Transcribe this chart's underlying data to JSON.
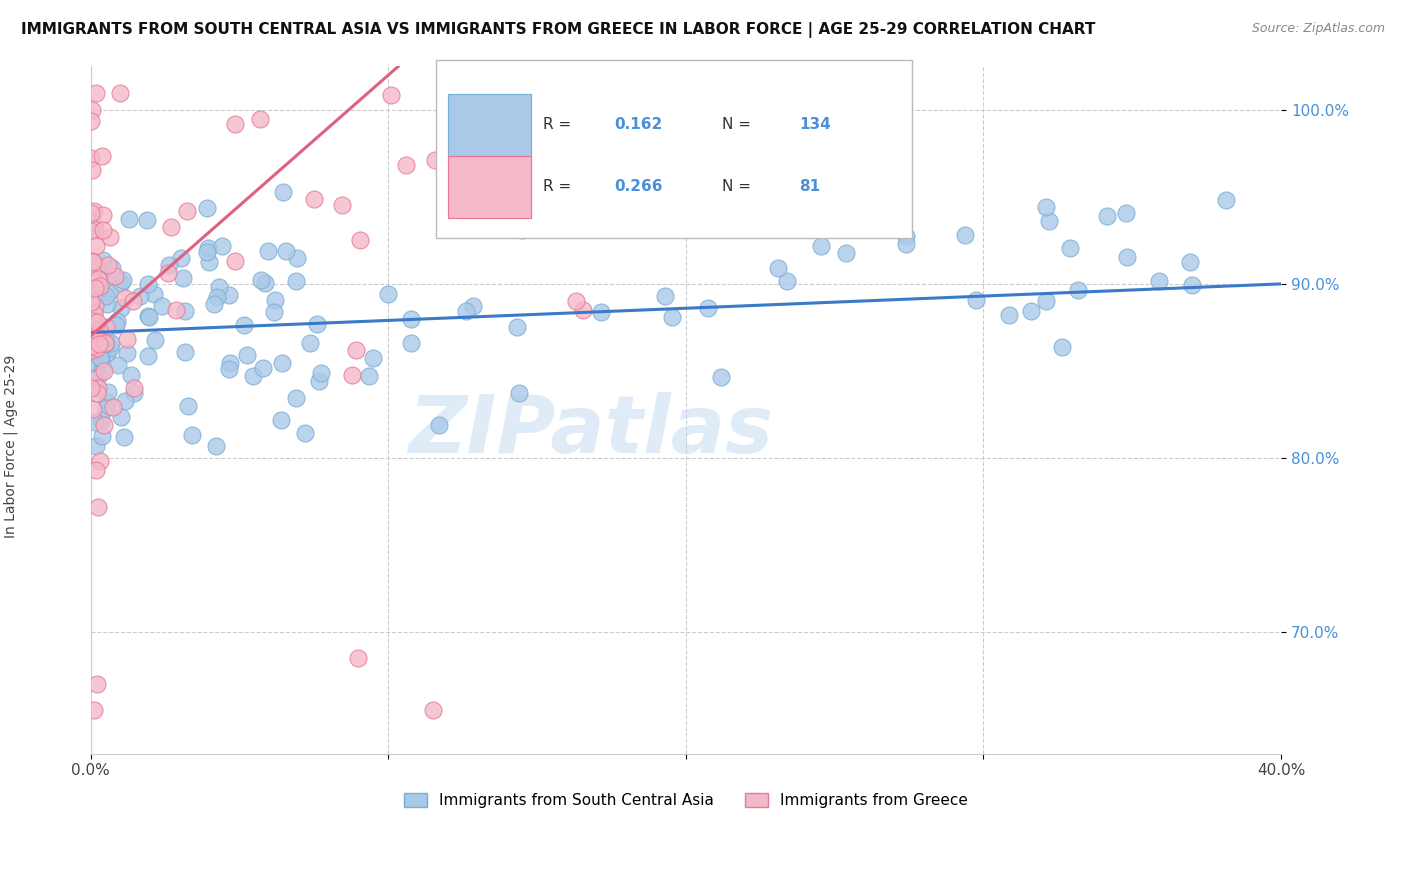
{
  "title": "IMMIGRANTS FROM SOUTH CENTRAL ASIA VS IMMIGRANTS FROM GREECE IN LABOR FORCE | AGE 25-29 CORRELATION CHART",
  "source": "Source: ZipAtlas.com",
  "ylabel": "In Labor Force | Age 25-29",
  "xlim": [
    0.0,
    0.4
  ],
  "ylim": [
    0.63,
    1.025
  ],
  "xticks": [
    0.0,
    0.1,
    0.2,
    0.3,
    0.4
  ],
  "xticklabels": [
    "0.0%",
    "",
    "",
    "",
    "40.0%"
  ],
  "yticks": [
    0.7,
    0.8,
    0.9,
    1.0
  ],
  "yticklabels": [
    "70.0%",
    "80.0%",
    "90.0%",
    "100.0%"
  ],
  "blue_color": "#aac9e8",
  "blue_edge_color": "#7aadd4",
  "pink_color": "#f4b8c8",
  "pink_edge_color": "#e87898",
  "blue_line_color": "#3a7ac8",
  "pink_line_color": "#e06080",
  "R_blue": 0.162,
  "N_blue": 134,
  "R_pink": 0.266,
  "N_pink": 81,
  "legend_label_blue": "Immigrants from South Central Asia",
  "legend_label_pink": "Immigrants from Greece",
  "watermark": "ZIPatlas"
}
